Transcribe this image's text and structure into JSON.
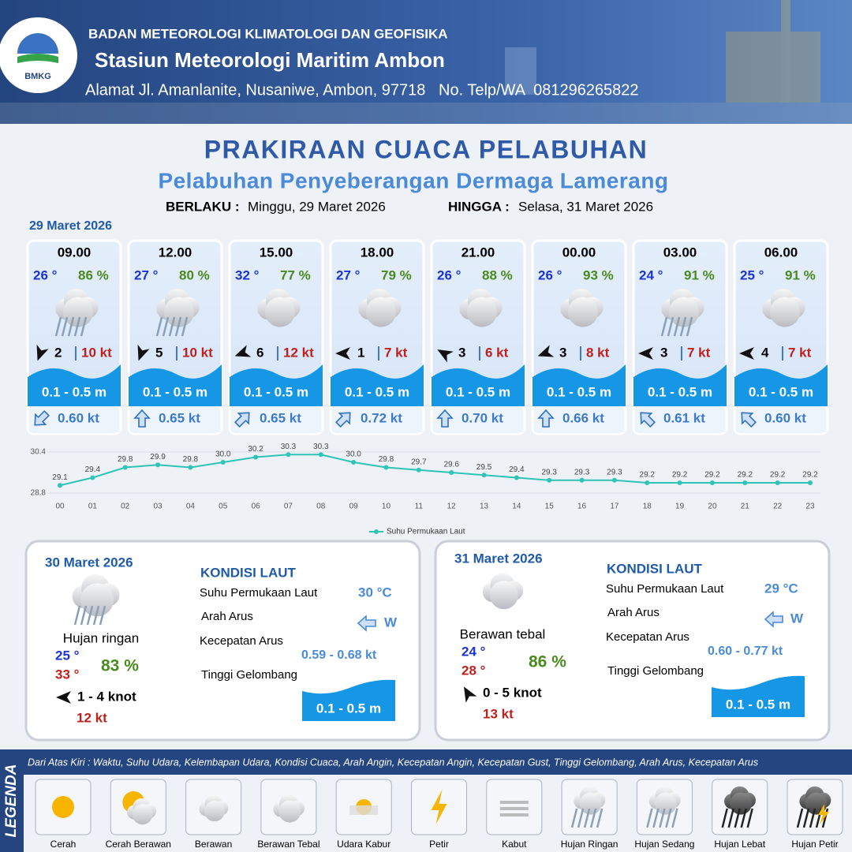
{
  "header": {
    "agency": "BADAN METEOROLOGI KLIMATOLOGI DAN GEOFISIKA",
    "station": "Stasiun Meteorologi Maritim Ambon",
    "address": "Alamat Jl. Amanlanite, Nusaniwe, Ambon, 97718   No. Telp/WA  081296265822",
    "logo": "BMKG"
  },
  "title": "PRAKIRAAN CUACA PELABUHAN",
  "subtitle": "Pelabuhan Penyeberangan Dermaga Lamerang",
  "validity": {
    "from_label": "BERLAKU :",
    "from": "Minggu, 29 Maret 2026",
    "to_label": "HINGGA :",
    "to": "Selasa, 31 Maret 2026"
  },
  "day1": {
    "date": "29 Maret 2026",
    "cards": [
      {
        "time": "09.00",
        "temp": "26 °",
        "humidity": "86 %",
        "wind": "2",
        "gust": "10 kt",
        "wave": "0.1 - 0.5 m",
        "current": "0.60 kt"
      },
      {
        "time": "12.00",
        "temp": "27 °",
        "humidity": "80 %",
        "wind": "5",
        "gust": "10 kt",
        "wave": "0.1 - 0.5 m",
        "current": "0.65 kt"
      },
      {
        "time": "15.00",
        "temp": "32 °",
        "humidity": "77 %",
        "wind": "6",
        "gust": "12 kt",
        "wave": "0.1 - 0.5 m",
        "current": "0.65 kt"
      },
      {
        "time": "18.00",
        "temp": "27 °",
        "humidity": "79 %",
        "wind": "1",
        "gust": "7 kt",
        "wave": "0.1 - 0.5 m",
        "current": "0.72 kt"
      },
      {
        "time": "21.00",
        "temp": "26 °",
        "humidity": "88 %",
        "wind": "3",
        "gust": "6 kt",
        "wave": "0.1 - 0.5 m",
        "current": "0.70 kt"
      },
      {
        "time": "00.00",
        "temp": "26 °",
        "humidity": "93 %",
        "wind": "3",
        "gust": "8 kt",
        "wave": "0.1 - 0.5 m",
        "current": "0.66 kt"
      },
      {
        "time": "03.00",
        "temp": "24 °",
        "humidity": "91 %",
        "wind": "3",
        "gust": "7 kt",
        "wave": "0.1 - 0.5 m",
        "current": "0.61 kt"
      },
      {
        "time": "06.00",
        "temp": "25 °",
        "humidity": "91 %",
        "wind": "4",
        "gust": "7 kt",
        "wave": "0.1 - 0.5 m",
        "current": "0.60 kt"
      }
    ]
  },
  "chart_data": {
    "type": "line",
    "categories": [
      "00",
      "01",
      "02",
      "03",
      "04",
      "05",
      "06",
      "07",
      "08",
      "09",
      "10",
      "11",
      "12",
      "13",
      "14",
      "15",
      "16",
      "17",
      "18",
      "19",
      "20",
      "21",
      "22",
      "23"
    ],
    "series": [
      {
        "name": "Suhu Permukaan Laut",
        "color": "#2ec4b6",
        "values": [
          29.1,
          29.4,
          29.8,
          29.9,
          29.8,
          30.0,
          30.2,
          30.3,
          30.3,
          30.0,
          29.8,
          29.7,
          29.6,
          29.5,
          29.4,
          29.3,
          29.3,
          29.3,
          29.2,
          29.2,
          29.2,
          29.2,
          29.2,
          29.2
        ],
        "value_labels": [
          "29.1",
          "29.4",
          "29.8",
          "29.9",
          "29.8",
          "30.0",
          "30.2",
          "30.3",
          "30.3",
          "30.0",
          "29.8",
          "29.7",
          "29.6",
          "29.5",
          "29.4",
          "29.3",
          "29.3",
          "29.3",
          "29.2",
          "29.2",
          "29.2",
          "29.2",
          "29.2",
          "29.2"
        ]
      }
    ],
    "ylim": [
      28.8,
      30.4
    ],
    "yticks": [
      28.8,
      30.4
    ],
    "grid": true,
    "legend": "bottom"
  },
  "days": [
    {
      "date": "30 Maret 2026",
      "weather": "Hujan ringan",
      "temp_min": "25 °",
      "temp_max": "33 °",
      "humidity": "83 %",
      "wind": "1  - 4 knot",
      "gust": "12 kt",
      "sea": {
        "heading": "KONDISI LAUT",
        "sst_label": "Suhu Permukaan Laut",
        "sst": "30 °C",
        "dir_label": "Arah Arus",
        "dir": "W",
        "speed_label": "Kecepatan Arus",
        "speed": "0.59 - 0.68 kt",
        "wave_label": "Tinggi Gelombang",
        "wave": "0.1 - 0.5 m"
      }
    },
    {
      "date": "31 Maret 2026",
      "weather": "Berawan tebal",
      "temp_min": "24 °",
      "temp_max": "28 °",
      "humidity": "86 %",
      "wind": "0  - 5 knot",
      "gust": "13 kt",
      "sea": {
        "heading": "KONDISI LAUT",
        "sst_label": "Suhu Permukaan Laut",
        "sst": "29 °C",
        "dir_label": "Arah Arus",
        "dir": "W",
        "speed_label": "Kecepatan Arus",
        "speed": "0.60 - 0.77 kt",
        "wave_label": "Tinggi Gelombang",
        "wave": "0.1 - 0.5 m"
      }
    }
  ],
  "legend": {
    "title": "LEGENDA",
    "description": "Dari Atas Kiri : Waktu, Suhu Udara, Kelembapan Udara, Kondisi Cuaca, Arah Angin, Kecepatan Angin, Kecepatan Gust, Tinggi Gelombang, Arah Arus, Kecepatan Arus",
    "items": [
      "Cerah",
      "Cerah Berawan",
      "Berawan",
      "Berawan Tebal",
      "Udara Kabur",
      "Petir",
      "Kabut",
      "Hujan Ringan",
      "Hujan Sedang",
      "Hujan Lebat",
      "Hujan Petir"
    ]
  }
}
